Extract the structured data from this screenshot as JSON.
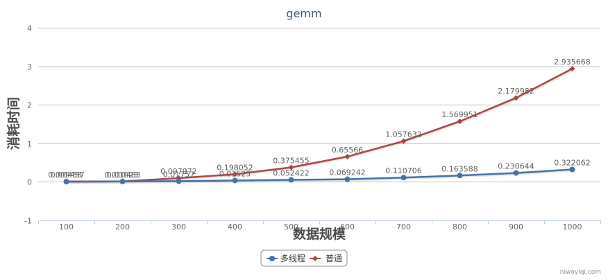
{
  "chart_data": {
    "type": "line",
    "title": "gemm",
    "xlabel": "数据规模",
    "ylabel": "消耗时间",
    "categories": [
      "100",
      "200",
      "300",
      "400",
      "500",
      "600",
      "700",
      "800",
      "900",
      "1000"
    ],
    "ylim": [
      -1,
      4
    ],
    "yticks": [
      "-1",
      "0",
      "1",
      "2",
      "3",
      "4"
    ],
    "grid": true,
    "legend_position": "bottom-center",
    "series": [
      {
        "name": "多线程",
        "color": "#4572a7",
        "marker": "circle",
        "values": [
          0.00458,
          0.01023,
          0.01757,
          0.03525,
          0.052422,
          0.069242,
          0.110706,
          0.163588,
          0.230644,
          0.322062
        ],
        "labels": [
          "0.00458",
          "0.01023",
          "0.01757",
          "0.03525",
          "0.052422",
          "0.069242",
          "0.110706",
          "0.163588",
          "0.230644",
          "0.322062"
        ]
      },
      {
        "name": "普通",
        "color": "#aa4643",
        "marker": "diamond",
        "values": [
          0.009457,
          0.010483,
          0.097972,
          0.198052,
          0.375455,
          0.65566,
          1.057632,
          1.569951,
          2.179982,
          2.935668
        ],
        "labels": [
          "0.009457",
          "0.010483",
          "0.097972",
          "0.198052",
          "0.375455",
          "0.65566",
          "1.057632",
          "1.569951",
          "2.179982",
          "2.935668"
        ]
      }
    ]
  },
  "credits": "niwoyiqi.com"
}
